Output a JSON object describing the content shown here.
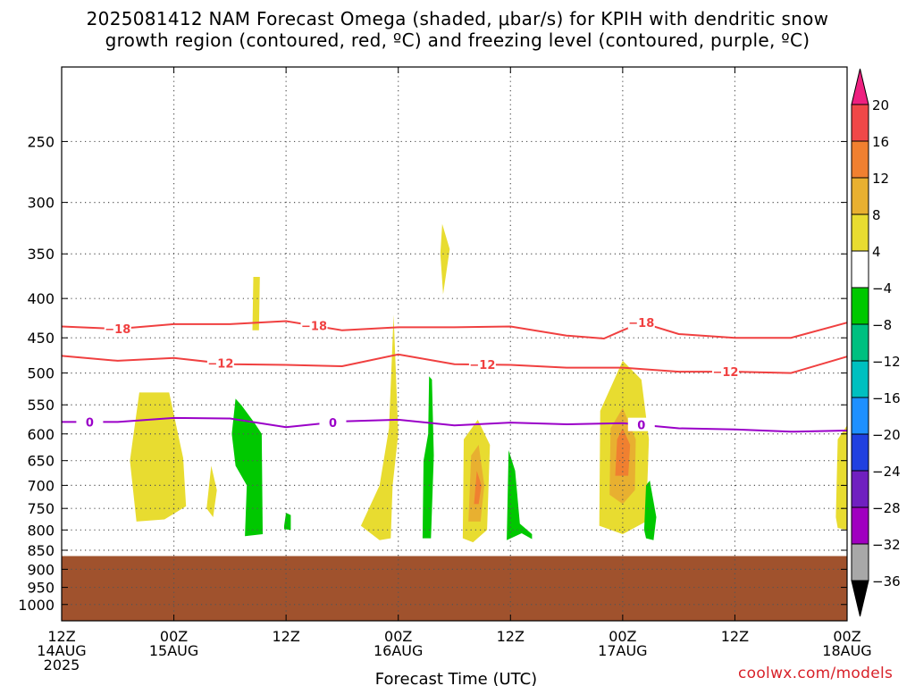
{
  "chart_data": {
    "type": "heatmap",
    "title_line1": "2025081412 NAM Forecast Omega (shaded, μbar/s) for KPIH with dendritic snow",
    "title_line2": "growth region (contoured, red, ºC) and freezing level (contoured, purple, ºC)",
    "xlabel": "Forecast Time (UTC)",
    "credit": "coolwx.com/models",
    "x_ticks": [
      {
        "hour": 0,
        "line1": "12Z",
        "line2": "14AUG",
        "line3": "2025"
      },
      {
        "hour": 12,
        "line1": "00Z",
        "line2": "15AUG",
        "line3": ""
      },
      {
        "hour": 24,
        "line1": "12Z",
        "line2": "",
        "line3": ""
      },
      {
        "hour": 36,
        "line1": "00Z",
        "line2": "16AUG",
        "line3": ""
      },
      {
        "hour": 48,
        "line1": "12Z",
        "line2": "",
        "line3": ""
      },
      {
        "hour": 60,
        "line1": "00Z",
        "line2": "17AUG",
        "line3": ""
      },
      {
        "hour": 72,
        "line1": "12Z",
        "line2": "",
        "line3": ""
      },
      {
        "hour": 84,
        "line1": "00Z",
        "line2": "18AUG",
        "line3": ""
      }
    ],
    "xlim": [
      0,
      84
    ],
    "y_ticks": [
      "250",
      "300",
      "350",
      "400",
      "450",
      "500",
      "550",
      "600",
      "650",
      "700",
      "750",
      "800",
      "850",
      "900",
      "950",
      "1000"
    ],
    "y_tick_values": [
      250,
      300,
      350,
      400,
      450,
      500,
      550,
      600,
      650,
      700,
      750,
      800,
      850,
      900,
      950,
      1000
    ],
    "ylim": [
      200,
      1050
    ],
    "y_scale": "log",
    "y_inverted": true,
    "grid": true,
    "surface_pressure": 865,
    "colorbar": {
      "labels": [
        "20",
        "16",
        "12",
        "8",
        "4",
        "−4",
        "−8",
        "−12",
        "−16",
        "−20",
        "−24",
        "−28",
        "−32",
        "−36"
      ],
      "boundaries": [
        20,
        16,
        12,
        8,
        4,
        -4,
        -8,
        -12,
        -16,
        -20,
        -24,
        -28,
        -32,
        -36
      ],
      "colors": [
        "#ee2080",
        "#f04848",
        "#f08030",
        "#e8b030",
        "#e8dc30",
        "#ffffff",
        "#00c800",
        "#00c080",
        "#00c0c0",
        "#1e90ff",
        "#2040e0",
        "#7020c0",
        "#a000c0",
        "#a8a8a8",
        "#000000"
      ]
    },
    "isotherms": [
      {
        "name": "-18",
        "color": "#f04040",
        "points": [
          [
            0,
            435
          ],
          [
            6,
            438
          ],
          [
            12,
            432
          ],
          [
            18,
            432
          ],
          [
            24,
            428
          ],
          [
            30,
            440
          ],
          [
            36,
            436
          ],
          [
            42,
            436
          ],
          [
            48,
            435
          ],
          [
            54,
            447
          ],
          [
            58,
            451
          ],
          [
            60,
            440
          ],
          [
            62,
            430
          ],
          [
            66,
            445
          ],
          [
            72,
            450
          ],
          [
            78,
            450
          ],
          [
            84,
            430
          ]
        ],
        "labels": [
          [
            6,
            "−18"
          ],
          [
            27,
            "−18"
          ],
          [
            62,
            "−18"
          ]
        ]
      },
      {
        "name": "-12",
        "color": "#f04040",
        "points": [
          [
            0,
            475
          ],
          [
            6,
            482
          ],
          [
            12,
            478
          ],
          [
            18,
            487
          ],
          [
            24,
            488
          ],
          [
            30,
            490
          ],
          [
            36,
            473
          ],
          [
            42,
            487
          ],
          [
            48,
            488
          ],
          [
            54,
            492
          ],
          [
            60,
            492
          ],
          [
            66,
            498
          ],
          [
            72,
            498
          ],
          [
            78,
            500
          ],
          [
            84,
            476
          ]
        ],
        "labels": [
          [
            17,
            "−12"
          ],
          [
            45,
            "−12"
          ],
          [
            71,
            "−12"
          ]
        ]
      },
      {
        "name": "0",
        "color": "#9a00c8",
        "points": [
          [
            0,
            579
          ],
          [
            6,
            579
          ],
          [
            12,
            572
          ],
          [
            18,
            573
          ],
          [
            24,
            588
          ],
          [
            30,
            578
          ],
          [
            36,
            575
          ],
          [
            42,
            585
          ],
          [
            48,
            580
          ],
          [
            54,
            583
          ],
          [
            60,
            581
          ],
          [
            66,
            590
          ],
          [
            72,
            592
          ],
          [
            78,
            596
          ],
          [
            84,
            594
          ]
        ],
        "labels": [
          [
            3,
            "0"
          ],
          [
            29,
            "0"
          ],
          [
            62,
            "0"
          ]
        ]
      }
    ],
    "omega_regions": [
      {
        "value": 4,
        "color": "#e8dc30",
        "points": [
          [
            8,
            780
          ],
          [
            7.3,
            650
          ],
          [
            8.3,
            530
          ],
          [
            11.5,
            530
          ],
          [
            13,
            645
          ],
          [
            13.3,
            745
          ],
          [
            11,
            775
          ]
        ]
      },
      {
        "value": 4,
        "color": "#e8dc30",
        "points": [
          [
            15.5,
            750
          ],
          [
            16,
            660
          ],
          [
            16.6,
            710
          ],
          [
            16.2,
            770
          ]
        ]
      },
      {
        "value": 4,
        "color": "#e8dc30",
        "points": [
          [
            20.5,
            375
          ],
          [
            21.2,
            375
          ],
          [
            21.1,
            440
          ],
          [
            20.4,
            440
          ]
        ]
      },
      {
        "value": 4,
        "color": "#e8dc30",
        "points": [
          [
            32,
            790
          ],
          [
            34,
            700
          ],
          [
            35,
            590
          ],
          [
            35.5,
            420
          ],
          [
            36,
            600
          ],
          [
            35.4,
            700
          ],
          [
            35.2,
            820
          ],
          [
            34,
            825
          ]
        ]
      },
      {
        "value": 4,
        "color": "#e8dc30",
        "points": [
          [
            40.5,
            350
          ],
          [
            40.7,
            320
          ],
          [
            41.5,
            345
          ],
          [
            40.8,
            395
          ]
        ]
      },
      {
        "value": 4,
        "color": "#e8dc30",
        "points": [
          [
            42.9,
            820
          ],
          [
            43,
            610
          ],
          [
            44.5,
            575
          ],
          [
            45.8,
            620
          ],
          [
            45.5,
            800
          ],
          [
            44,
            830
          ]
        ]
      },
      {
        "value": 8,
        "color": "#e8b030",
        "points": [
          [
            43.5,
            780
          ],
          [
            43.8,
            640
          ],
          [
            44.6,
            620
          ],
          [
            45.2,
            700
          ],
          [
            44.8,
            780
          ]
        ]
      },
      {
        "value": 12,
        "color": "#f08030",
        "points": [
          [
            44.1,
            740
          ],
          [
            44.4,
            670
          ],
          [
            44.9,
            700
          ],
          [
            44.6,
            740
          ]
        ]
      },
      {
        "value": 4,
        "color": "#e8dc30",
        "points": [
          [
            57.5,
            790
          ],
          [
            57.6,
            560
          ],
          [
            60,
            482
          ],
          [
            62,
            510
          ],
          [
            62.8,
            610
          ],
          [
            62.5,
            780
          ],
          [
            60,
            810
          ]
        ]
      },
      {
        "value": 8,
        "color": "#e8b030",
        "points": [
          [
            58.6,
            720
          ],
          [
            58.7,
            590
          ],
          [
            60,
            555
          ],
          [
            61.4,
            610
          ],
          [
            61.3,
            710
          ],
          [
            60,
            740
          ]
        ]
      },
      {
        "value": 12,
        "color": "#f08030",
        "points": [
          [
            59.2,
            680
          ],
          [
            59.4,
            610
          ],
          [
            60,
            590
          ],
          [
            60.8,
            620
          ],
          [
            60.6,
            680
          ]
        ]
      },
      {
        "value": 4,
        "color": "#e8dc30",
        "points": [
          [
            82.8,
            770
          ],
          [
            83,
            610
          ],
          [
            84,
            585
          ],
          [
            84,
            800
          ],
          [
            83,
            795
          ]
        ]
      },
      {
        "value": -4,
        "color": "#00c800",
        "points": [
          [
            18.2,
            600
          ],
          [
            18.6,
            540
          ],
          [
            19.2,
            550
          ],
          [
            20.6,
            580
          ],
          [
            21.4,
            600
          ],
          [
            21.5,
            810
          ],
          [
            19.6,
            815
          ],
          [
            19.8,
            700
          ],
          [
            18.6,
            660
          ]
        ]
      },
      {
        "value": -4,
        "color": "#00c800",
        "points": [
          [
            23.8,
            790
          ],
          [
            24,
            760
          ],
          [
            24.5,
            765
          ],
          [
            24.5,
            800
          ],
          [
            23.8,
            798
          ]
        ]
      },
      {
        "value": -4,
        "color": "#00c800",
        "points": [
          [
            38.6,
            820
          ],
          [
            38.7,
            650
          ],
          [
            39.2,
            600
          ],
          [
            39.3,
            505
          ],
          [
            39.6,
            510
          ],
          [
            39.8,
            640
          ],
          [
            39.5,
            820
          ]
        ]
      },
      {
        "value": -4,
        "color": "#00c800",
        "points": [
          [
            47.6,
            825
          ],
          [
            47.8,
            630
          ],
          [
            48.5,
            670
          ],
          [
            49,
            785
          ],
          [
            50.3,
            810
          ],
          [
            50.3,
            822
          ],
          [
            49.2,
            808
          ]
        ]
      },
      {
        "value": -4,
        "color": "#00c800",
        "points": [
          [
            62.3,
            800
          ],
          [
            62.5,
            700
          ],
          [
            62.9,
            690
          ],
          [
            63.6,
            770
          ],
          [
            63.3,
            825
          ],
          [
            62.5,
            820
          ]
        ]
      }
    ]
  }
}
